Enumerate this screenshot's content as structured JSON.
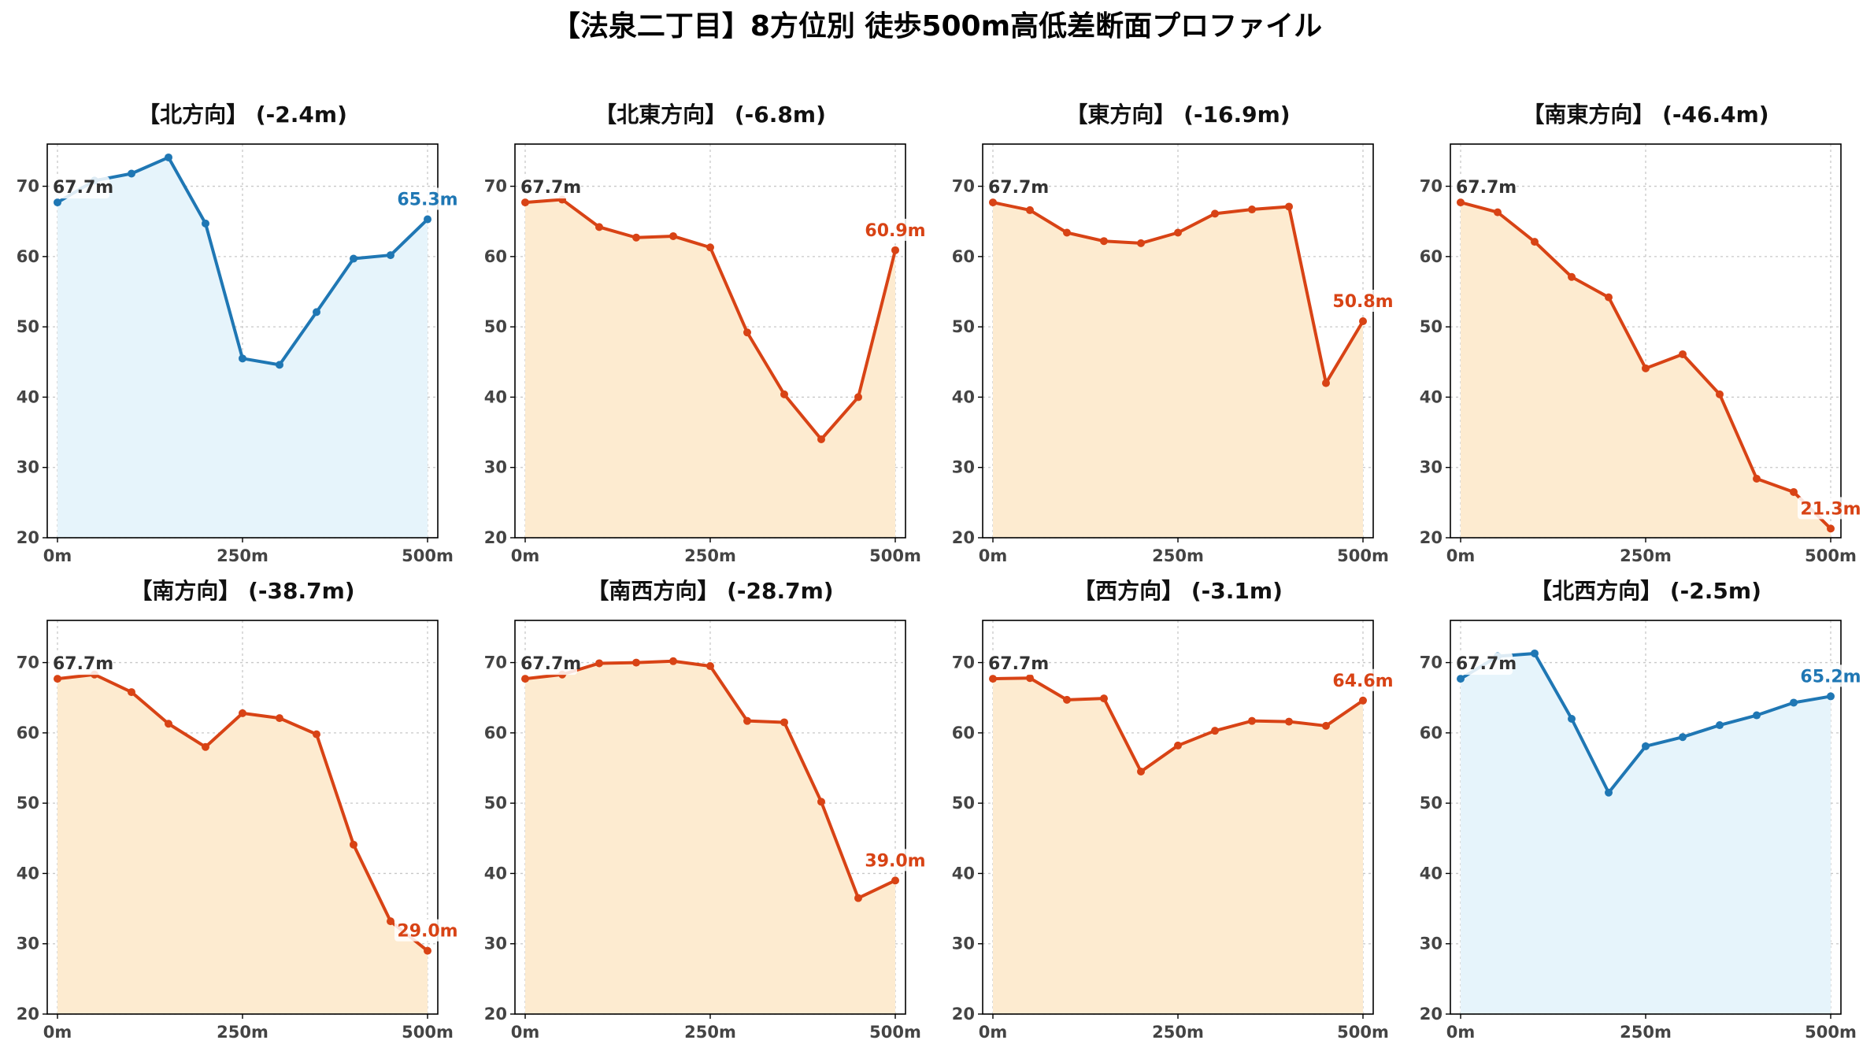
{
  "title": "【法泉二丁目】8方位別 徒歩500m高低差断面プロファイル",
  "colors": {
    "up": "#1f77b4",
    "up_fill": "#e6f4fb",
    "down": "#d84315",
    "down_fill": "#fdebd0",
    "grid": "#c8c8c8"
  },
  "chart_data": [
    {
      "type": "area",
      "title": "【北方向】 (-2.4m)",
      "trend": "up",
      "x": [
        0,
        50,
        100,
        150,
        200,
        250,
        300,
        350,
        400,
        450,
        500
      ],
      "y": [
        67.7,
        70.8,
        71.8,
        74.1,
        64.7,
        45.5,
        44.6,
        52.1,
        59.7,
        60.2,
        65.3
      ],
      "xticks": [
        "0m",
        "250m",
        "500m"
      ],
      "yticks": [
        "20",
        "30",
        "40",
        "50",
        "60",
        "70"
      ],
      "ylim": [
        20,
        76
      ],
      "start_label": "67.7m",
      "end_label": "65.3m",
      "grid": true
    },
    {
      "type": "area",
      "title": "【北東方向】 (-6.8m)",
      "trend": "down",
      "x": [
        0,
        50,
        100,
        150,
        200,
        250,
        300,
        350,
        400,
        450,
        500
      ],
      "y": [
        67.7,
        68.1,
        64.2,
        62.7,
        62.9,
        61.3,
        49.2,
        40.4,
        34.0,
        40.0,
        60.9
      ],
      "xticks": [
        "0m",
        "250m",
        "500m"
      ],
      "yticks": [
        "20",
        "30",
        "40",
        "50",
        "60",
        "70"
      ],
      "ylim": [
        20,
        76
      ],
      "start_label": "67.7m",
      "end_label": "60.9m",
      "grid": true
    },
    {
      "type": "area",
      "title": "【東方向】 (-16.9m)",
      "trend": "down",
      "x": [
        0,
        50,
        100,
        150,
        200,
        250,
        300,
        350,
        400,
        450,
        500
      ],
      "y": [
        67.7,
        66.6,
        63.4,
        62.2,
        61.9,
        63.4,
        66.1,
        66.7,
        67.1,
        42.0,
        50.8
      ],
      "xticks": [
        "0m",
        "250m",
        "500m"
      ],
      "yticks": [
        "20",
        "30",
        "40",
        "50",
        "60",
        "70"
      ],
      "ylim": [
        20,
        76
      ],
      "start_label": "67.7m",
      "end_label": "50.8m",
      "grid": true
    },
    {
      "type": "area",
      "title": "【南東方向】 (-46.4m)",
      "trend": "down",
      "x": [
        0,
        50,
        100,
        150,
        200,
        250,
        300,
        350,
        400,
        450,
        500
      ],
      "y": [
        67.7,
        66.3,
        62.1,
        57.1,
        54.2,
        44.1,
        46.1,
        40.4,
        28.4,
        26.5,
        21.3
      ],
      "xticks": [
        "0m",
        "250m",
        "500m"
      ],
      "yticks": [
        "20",
        "30",
        "40",
        "50",
        "60",
        "70"
      ],
      "ylim": [
        20,
        76
      ],
      "start_label": "67.7m",
      "end_label": "21.3m",
      "grid": true
    },
    {
      "type": "area",
      "title": "【南方向】 (-38.7m)",
      "trend": "down",
      "x": [
        0,
        50,
        100,
        150,
        200,
        250,
        300,
        350,
        400,
        450,
        500
      ],
      "y": [
        67.7,
        68.3,
        65.8,
        61.3,
        58.0,
        62.8,
        62.1,
        59.8,
        44.1,
        33.2,
        29.0
      ],
      "xticks": [
        "0m",
        "250m",
        "500m"
      ],
      "yticks": [
        "20",
        "30",
        "40",
        "50",
        "60",
        "70"
      ],
      "ylim": [
        20,
        76
      ],
      "start_label": "67.7m",
      "end_label": "29.0m",
      "grid": true
    },
    {
      "type": "area",
      "title": "【南西方向】 (-28.7m)",
      "trend": "down",
      "x": [
        0,
        50,
        100,
        150,
        200,
        250,
        300,
        350,
        400,
        450,
        500
      ],
      "y": [
        67.7,
        68.3,
        69.9,
        70.0,
        70.2,
        69.5,
        61.7,
        61.5,
        50.2,
        36.5,
        39.0
      ],
      "xticks": [
        "0m",
        "250m",
        "500m"
      ],
      "yticks": [
        "20",
        "30",
        "40",
        "50",
        "60",
        "70"
      ],
      "ylim": [
        20,
        76
      ],
      "start_label": "67.7m",
      "end_label": "39.0m",
      "grid": true
    },
    {
      "type": "area",
      "title": "【西方向】 (-3.1m)",
      "trend": "down",
      "x": [
        0,
        50,
        100,
        150,
        200,
        250,
        300,
        350,
        400,
        450,
        500
      ],
      "y": [
        67.7,
        67.8,
        64.7,
        64.9,
        54.5,
        58.2,
        60.3,
        61.7,
        61.6,
        61.0,
        64.6
      ],
      "xticks": [
        "0m",
        "250m",
        "500m"
      ],
      "yticks": [
        "20",
        "30",
        "40",
        "50",
        "60",
        "70"
      ],
      "ylim": [
        20,
        76
      ],
      "start_label": "67.7m",
      "end_label": "64.6m",
      "grid": true
    },
    {
      "type": "area",
      "title": "【北西方向】 (-2.5m)",
      "trend": "up",
      "x": [
        0,
        50,
        100,
        150,
        200,
        250,
        300,
        350,
        400,
        450,
        500
      ],
      "y": [
        67.7,
        70.9,
        71.3,
        62.0,
        51.5,
        58.1,
        59.4,
        61.1,
        62.5,
        64.3,
        65.2
      ],
      "xticks": [
        "0m",
        "250m",
        "500m"
      ],
      "yticks": [
        "20",
        "30",
        "40",
        "50",
        "60",
        "70"
      ],
      "ylim": [
        20,
        76
      ],
      "start_label": "67.7m",
      "end_label": "65.2m",
      "grid": true
    }
  ]
}
